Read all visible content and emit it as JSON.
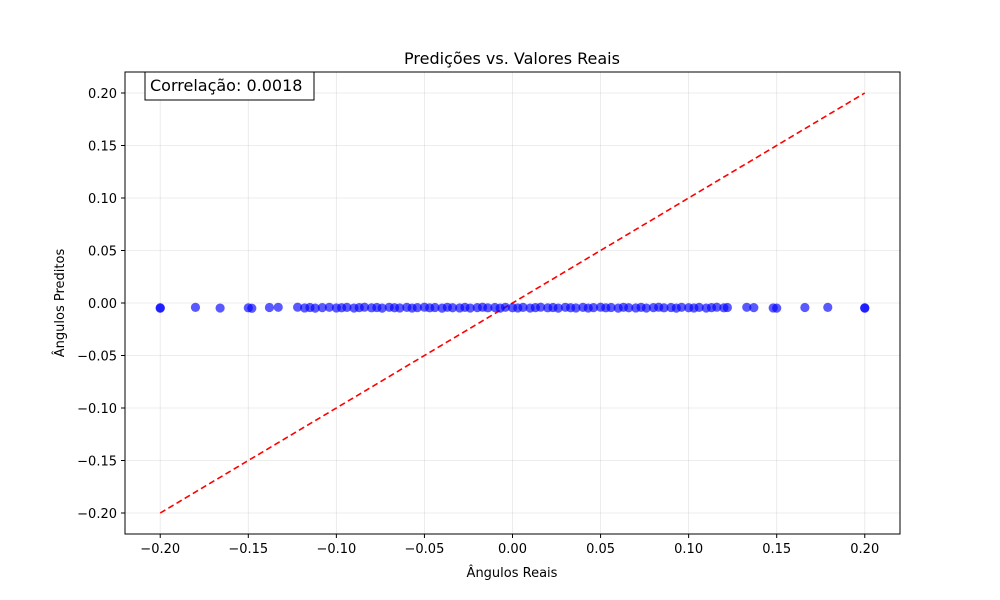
{
  "chart_data": {
    "type": "scatter",
    "title": "Predições vs. Valores Reais",
    "xlabel": "Ângulos Reais",
    "ylabel": "Ângulos Preditos",
    "xlim": [
      -0.22,
      0.22
    ],
    "ylim": [
      -0.22,
      0.22
    ],
    "xticks": [
      -0.2,
      -0.15,
      -0.1,
      -0.05,
      0.0,
      0.05,
      0.1,
      0.15,
      0.2
    ],
    "xtick_labels": [
      "−0.20",
      "−0.15",
      "−0.10",
      "−0.05",
      "0.00",
      "0.05",
      "0.10",
      "0.15",
      "0.20"
    ],
    "yticks": [
      -0.2,
      -0.15,
      -0.1,
      -0.05,
      0.0,
      0.05,
      0.1,
      0.15,
      0.2
    ],
    "ytick_labels": [
      "−0.20",
      "−0.15",
      "−0.10",
      "−0.05",
      "0.00",
      "0.05",
      "0.10",
      "0.15",
      "0.20"
    ],
    "grid": true,
    "annotation": "Correlação: 0.0018",
    "point_color": "#0000ff",
    "reference_line": {
      "x": [
        -0.2,
        0.2
      ],
      "y": [
        -0.2,
        0.2
      ],
      "color": "#ff0000",
      "style": "dashed"
    },
    "series": [
      {
        "x": [
          -0.2,
          -0.2,
          -0.18,
          -0.166,
          -0.15,
          -0.148,
          -0.138,
          -0.133,
          -0.122,
          -0.118,
          -0.115,
          -0.112,
          -0.108,
          -0.104,
          -0.1,
          -0.097,
          -0.094,
          -0.09,
          -0.087,
          -0.084,
          -0.08,
          -0.077,
          -0.074,
          -0.07,
          -0.067,
          -0.064,
          -0.06,
          -0.057,
          -0.054,
          -0.05,
          -0.047,
          -0.044,
          -0.04,
          -0.037,
          -0.034,
          -0.03,
          -0.027,
          -0.024,
          -0.02,
          -0.017,
          -0.014,
          -0.01,
          -0.007,
          -0.004,
          0.0,
          0.003,
          0.006,
          0.01,
          0.013,
          0.016,
          0.02,
          0.023,
          0.026,
          0.03,
          0.033,
          0.036,
          0.04,
          0.043,
          0.046,
          0.05,
          0.053,
          0.056,
          0.06,
          0.063,
          0.066,
          0.07,
          0.073,
          0.076,
          0.08,
          0.083,
          0.086,
          0.09,
          0.093,
          0.096,
          0.1,
          0.103,
          0.106,
          0.11,
          0.113,
          0.116,
          0.12,
          0.122,
          0.133,
          0.137,
          0.148,
          0.15,
          0.166,
          0.179,
          0.2,
          0.2
        ],
        "y": [
          -0.0045,
          -0.005,
          -0.0042,
          -0.0048,
          -0.0046,
          -0.005,
          -0.0043,
          -0.0041,
          -0.004,
          -0.0047,
          -0.0043,
          -0.0049,
          -0.0044,
          -0.0041,
          -0.0047,
          -0.0045,
          -0.0042,
          -0.0048,
          -0.0044,
          -0.004,
          -0.0046,
          -0.0043,
          -0.0049,
          -0.0041,
          -0.0045,
          -0.0047,
          -0.0042,
          -0.0048,
          -0.0044,
          -0.004,
          -0.0046,
          -0.0043,
          -0.0049,
          -0.0041,
          -0.0045,
          -0.0047,
          -0.0042,
          -0.0048,
          -0.0044,
          -0.004,
          -0.0046,
          -0.0043,
          -0.0049,
          -0.0041,
          -0.0045,
          -0.0047,
          -0.0042,
          -0.0048,
          -0.0044,
          -0.004,
          -0.0046,
          -0.0043,
          -0.0049,
          -0.0041,
          -0.0045,
          -0.0047,
          -0.0042,
          -0.0048,
          -0.0044,
          -0.004,
          -0.0046,
          -0.0043,
          -0.0049,
          -0.0041,
          -0.0045,
          -0.0047,
          -0.0042,
          -0.0048,
          -0.0044,
          -0.004,
          -0.0046,
          -0.0043,
          -0.0049,
          -0.0041,
          -0.0045,
          -0.0047,
          -0.0042,
          -0.0048,
          -0.0044,
          -0.004,
          -0.0046,
          -0.0043,
          -0.0041,
          -0.0044,
          -0.0047,
          -0.0049,
          -0.0043,
          -0.0042,
          -0.0045,
          -0.005
        ]
      }
    ]
  }
}
